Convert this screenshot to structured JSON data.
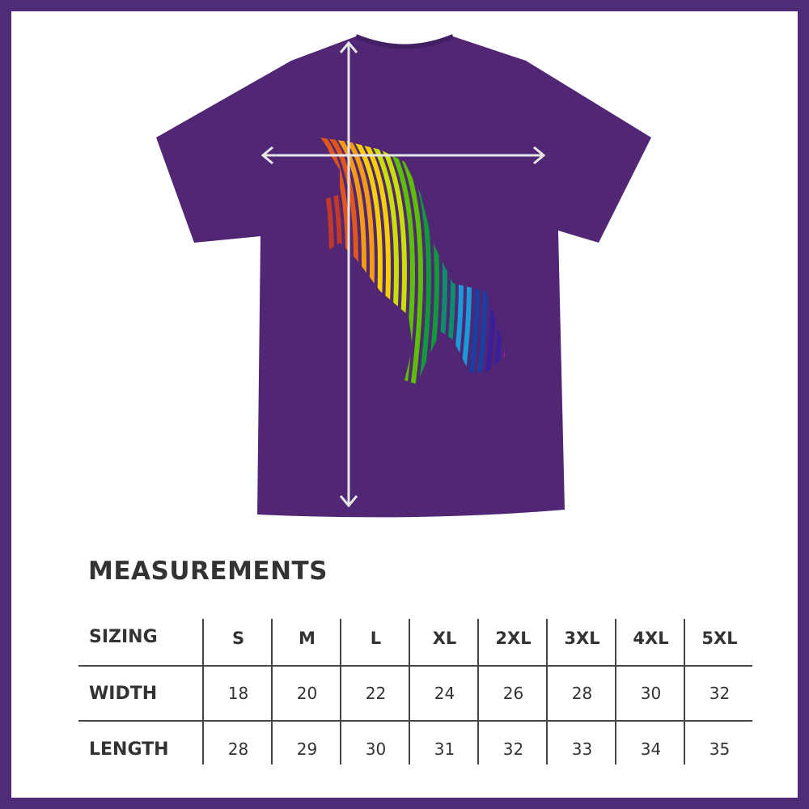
{
  "colors": {
    "border": "#4f2d78",
    "shirt": "#502675",
    "arrow": "#e6e6e6",
    "text": "#333333"
  },
  "title": "MEASUREMENTS",
  "table": {
    "header_label": "SIZING",
    "sizes": [
      "S",
      "M",
      "L",
      "XL",
      "2XL",
      "3XL",
      "4XL",
      "5XL"
    ],
    "rows": [
      {
        "label": "WIDTH",
        "values": [
          "18",
          "20",
          "22",
          "24",
          "26",
          "28",
          "30",
          "32"
        ]
      },
      {
        "label": "LENGTH",
        "values": [
          "28",
          "29",
          "30",
          "31",
          "32",
          "33",
          "34",
          "35"
        ]
      }
    ]
  }
}
